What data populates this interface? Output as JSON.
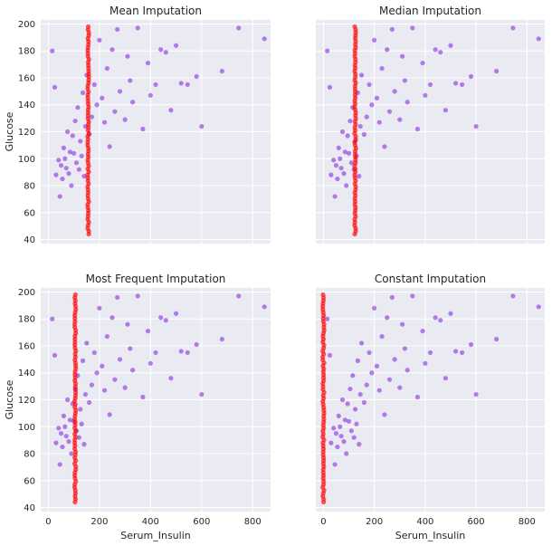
{
  "figure": {
    "point_colors": {
      "observed": "#8b2be2",
      "imputed": "#ff0000"
    },
    "background": "#eaeaf2"
  },
  "chart_data": [
    {
      "type": "scatter",
      "title": "Mean Imputation",
      "xlabel": "",
      "ylabel": "Glucose",
      "xlim": [
        -30,
        870
      ],
      "ylim": [
        37,
        203
      ],
      "xticks": [],
      "yticks": [
        40,
        60,
        80,
        100,
        120,
        140,
        160,
        180,
        200
      ],
      "imputed_x": 156,
      "imputed_y_range": [
        44,
        199
      ],
      "series": [
        {
          "values_x": [
            15,
            25,
            30,
            40,
            45,
            50,
            55,
            60,
            65,
            70,
            75,
            80,
            85,
            90,
            95,
            100,
            105,
            110,
            115,
            120,
            125,
            130,
            135,
            140,
            145,
            150,
            160,
            170,
            180,
            190,
            200,
            210,
            220,
            230,
            240,
            250,
            260,
            270,
            280,
            300,
            310,
            320,
            330,
            350,
            370,
            390,
            400,
            420,
            440,
            460,
            480,
            500,
            520,
            545,
            580,
            600,
            680,
            745,
            846
          ],
          "values_y": [
            180,
            153,
            88,
            99,
            72,
            95,
            85,
            108,
            100,
            93,
            120,
            89,
            105,
            80,
            117,
            104,
            128,
            97,
            138,
            92,
            113,
            102,
            149,
            87,
            124,
            162,
            118,
            131,
            155,
            140,
            188,
            145,
            127,
            167,
            109,
            181,
            135,
            196,
            150,
            129,
            176,
            158,
            142,
            197,
            122,
            171,
            147,
            155,
            181,
            179,
            136,
            184,
            156,
            155,
            161,
            124,
            165,
            197,
            189
          ]
        }
      ]
    },
    {
      "type": "scatter",
      "title": "Median Imputation",
      "xlabel": "",
      "ylabel": "",
      "xlim": [
        -30,
        870
      ],
      "ylim": [
        37,
        203
      ],
      "xticks": [],
      "yticks": [],
      "imputed_x": 125,
      "imputed_y_range": [
        44,
        199
      ],
      "series": [
        {
          "values_x": [
            15,
            25,
            30,
            40,
            45,
            50,
            55,
            60,
            65,
            70,
            75,
            80,
            85,
            90,
            95,
            100,
            105,
            110,
            115,
            120,
            125,
            130,
            135,
            140,
            145,
            150,
            160,
            170,
            180,
            190,
            200,
            210,
            220,
            230,
            240,
            250,
            260,
            270,
            280,
            300,
            310,
            320,
            330,
            350,
            370,
            390,
            400,
            420,
            440,
            460,
            480,
            500,
            520,
            545,
            580,
            600,
            680,
            745,
            846
          ],
          "values_y": [
            180,
            153,
            88,
            99,
            72,
            95,
            85,
            108,
            100,
            93,
            120,
            89,
            105,
            80,
            117,
            104,
            128,
            97,
            138,
            92,
            113,
            102,
            149,
            87,
            124,
            162,
            118,
            131,
            155,
            140,
            188,
            145,
            127,
            167,
            109,
            181,
            135,
            196,
            150,
            129,
            176,
            158,
            142,
            197,
            122,
            171,
            147,
            155,
            181,
            179,
            136,
            184,
            156,
            155,
            161,
            124,
            165,
            197,
            189
          ]
        }
      ]
    },
    {
      "type": "scatter",
      "title": "Most Frequent Imputation",
      "xlabel": "Serum_Insulin",
      "ylabel": "Glucose",
      "xlim": [
        -30,
        870
      ],
      "ylim": [
        37,
        203
      ],
      "xticks": [
        0,
        200,
        400,
        600,
        800
      ],
      "yticks": [
        40,
        60,
        80,
        100,
        120,
        140,
        160,
        180,
        200
      ],
      "imputed_x": 105,
      "imputed_y_range": [
        44,
        199
      ],
      "series": [
        {
          "values_x": [
            15,
            25,
            30,
            40,
            45,
            50,
            55,
            60,
            65,
            70,
            75,
            80,
            85,
            90,
            95,
            100,
            105,
            110,
            115,
            120,
            125,
            130,
            135,
            140,
            145,
            150,
            160,
            170,
            180,
            190,
            200,
            210,
            220,
            230,
            240,
            250,
            260,
            270,
            280,
            300,
            310,
            320,
            330,
            350,
            370,
            390,
            400,
            420,
            440,
            460,
            480,
            500,
            520,
            545,
            580,
            600,
            680,
            745,
            846
          ],
          "values_y": [
            180,
            153,
            88,
            99,
            72,
            95,
            85,
            108,
            100,
            93,
            120,
            89,
            105,
            80,
            117,
            104,
            128,
            97,
            138,
            92,
            113,
            102,
            149,
            87,
            124,
            162,
            118,
            131,
            155,
            140,
            188,
            145,
            127,
            167,
            109,
            181,
            135,
            196,
            150,
            129,
            176,
            158,
            142,
            197,
            122,
            171,
            147,
            155,
            181,
            179,
            136,
            184,
            156,
            155,
            161,
            124,
            165,
            197,
            189
          ]
        }
      ]
    },
    {
      "type": "scatter",
      "title": "Constant Imputation",
      "xlabel": "Serum_Insulin",
      "ylabel": "",
      "xlim": [
        -30,
        870
      ],
      "ylim": [
        37,
        203
      ],
      "xticks": [
        0,
        200,
        400,
        600,
        800
      ],
      "yticks": [],
      "imputed_x": 0,
      "imputed_y_range": [
        44,
        199
      ],
      "series": [
        {
          "values_x": [
            15,
            25,
            30,
            40,
            45,
            50,
            55,
            60,
            65,
            70,
            75,
            80,
            85,
            90,
            95,
            100,
            105,
            110,
            115,
            120,
            125,
            130,
            135,
            140,
            145,
            150,
            160,
            170,
            180,
            190,
            200,
            210,
            220,
            230,
            240,
            250,
            260,
            270,
            280,
            300,
            310,
            320,
            330,
            350,
            370,
            390,
            400,
            420,
            440,
            460,
            480,
            500,
            520,
            545,
            580,
            600,
            680,
            745,
            846
          ],
          "values_y": [
            180,
            153,
            88,
            99,
            72,
            95,
            85,
            108,
            100,
            93,
            120,
            89,
            105,
            80,
            117,
            104,
            128,
            97,
            138,
            92,
            113,
            102,
            149,
            87,
            124,
            162,
            118,
            131,
            155,
            140,
            188,
            145,
            127,
            167,
            109,
            181,
            135,
            196,
            150,
            129,
            176,
            158,
            142,
            197,
            122,
            171,
            147,
            155,
            181,
            179,
            136,
            184,
            156,
            155,
            161,
            124,
            165,
            197,
            189
          ]
        }
      ]
    }
  ]
}
